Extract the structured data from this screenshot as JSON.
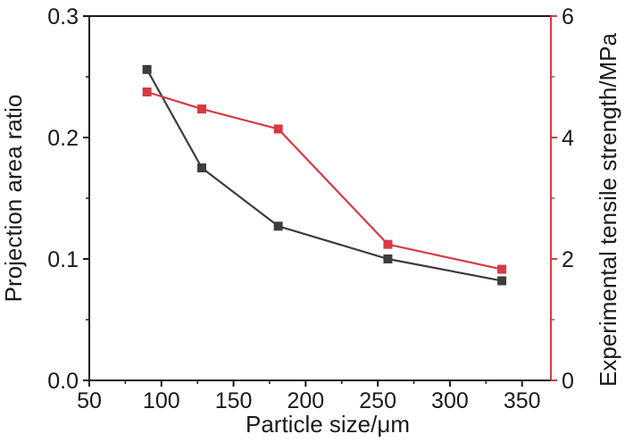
{
  "chart_data": {
    "type": "line",
    "title": "",
    "xlabel": "Particle size/μm",
    "ylabel_left": "Projection area ratio",
    "ylabel_right": "Experimental tensile strength/MPa",
    "xlim": [
      50,
      370
    ],
    "ylim_left": [
      0,
      0.3
    ],
    "ylim_right": [
      0,
      6
    ],
    "x_ticks": [
      50,
      100,
      150,
      200,
      250,
      300,
      350
    ],
    "y_left_ticks": [
      "0.0",
      "0.1",
      "0.2",
      "0.3"
    ],
    "y_right_ticks": [
      "0",
      "2",
      "4",
      "6"
    ],
    "grid": false,
    "legend": "none",
    "series": [
      {
        "axis": "left",
        "color": "#3d3d3d",
        "marker": "square",
        "x": [
          90,
          128,
          181,
          257,
          336
        ],
        "y": [
          0.256,
          0.175,
          0.127,
          0.1,
          0.082
        ]
      },
      {
        "axis": "right",
        "color": "#d83a43",
        "marker": "square",
        "x": [
          90,
          128,
          181,
          257,
          336
        ],
        "y": [
          4.75,
          4.47,
          4.14,
          2.24,
          1.83
        ]
      }
    ],
    "colors": {
      "left_axis": "#1a1a1a",
      "right_axis": "#d83a43"
    }
  }
}
